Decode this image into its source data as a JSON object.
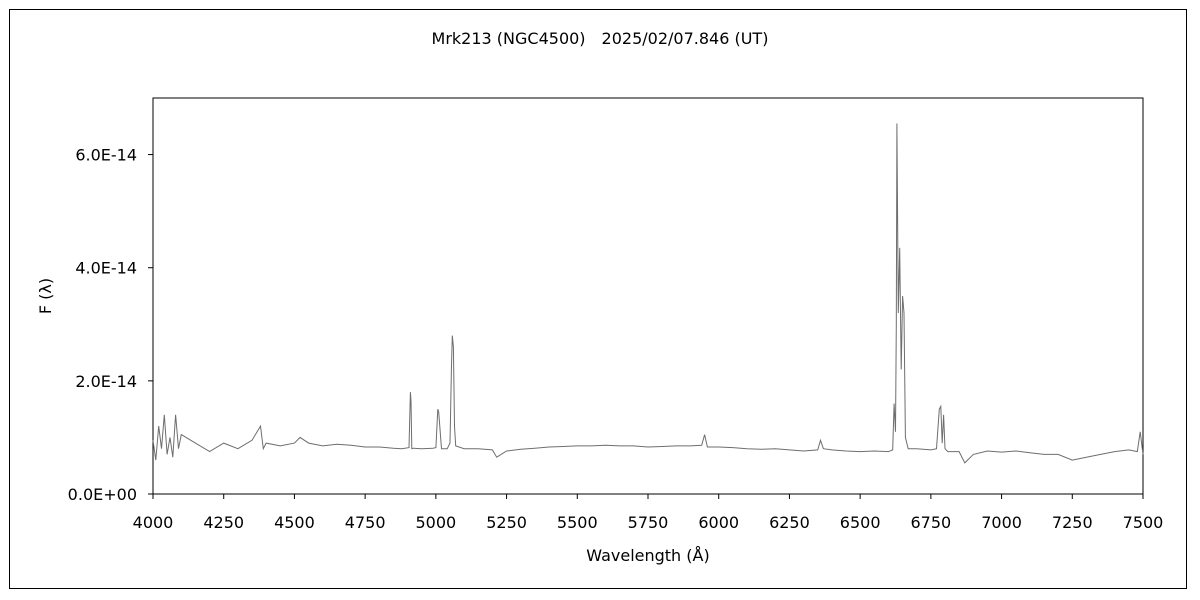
{
  "chart_data": {
    "type": "line",
    "title": "Mrk213 (NGC4500)　2025/02/07.846 (UT)",
    "xlabel": "Wavelength (Å)",
    "ylabel": "F (λ)",
    "xlim": [
      4000,
      7500
    ],
    "ylim": [
      0,
      7e-14
    ],
    "x_ticks": [
      "4000",
      "4250",
      "4500",
      "4750",
      "5000",
      "5250",
      "5500",
      "5750",
      "6000",
      "6250",
      "6500",
      "6750",
      "7000",
      "7250",
      "7500"
    ],
    "y_ticks": [
      "0.0E+00",
      "2.0E-14",
      "4.0E-14",
      "6.0E-14"
    ],
    "y_tick_values": [
      0,
      2e-14,
      4e-14,
      6e-14
    ],
    "grid": false,
    "legend": "none",
    "series_color": "#6e6e6e",
    "x": [
      4000,
      4010,
      4020,
      4030,
      4040,
      4050,
      4060,
      4070,
      4080,
      4090,
      4100,
      4150,
      4200,
      4250,
      4300,
      4350,
      4380,
      4390,
      4400,
      4450,
      4500,
      4520,
      4550,
      4600,
      4650,
      4700,
      4750,
      4800,
      4850,
      4880,
      4905,
      4910,
      4912,
      4915,
      4920,
      4950,
      4990,
      5000,
      5007,
      5010,
      5020,
      5040,
      5050,
      5055,
      5058,
      5062,
      5066,
      5070,
      5100,
      5150,
      5200,
      5215,
      5250,
      5300,
      5350,
      5400,
      5450,
      5500,
      5550,
      5600,
      5650,
      5700,
      5750,
      5800,
      5850,
      5900,
      5940,
      5950,
      5960,
      6000,
      6050,
      6100,
      6150,
      6200,
      6250,
      6300,
      6350,
      6360,
      6370,
      6400,
      6450,
      6500,
      6550,
      6600,
      6615,
      6620,
      6625,
      6628,
      6630,
      6635,
      6640,
      6645,
      6650,
      6655,
      6660,
      6670,
      6700,
      6750,
      6770,
      6780,
      6785,
      6790,
      6795,
      6800,
      6810,
      6850,
      6870,
      6900,
      6950,
      7000,
      7050,
      7100,
      7150,
      7200,
      7250,
      7300,
      7350,
      7400,
      7450,
      7480,
      7490,
      7500
    ],
    "y": [
      9.5e-15,
      6e-15,
      1.2e-14,
      8e-15,
      1.4e-14,
      7e-15,
      1e-14,
      6.5e-15,
      1.4e-14,
      8e-15,
      1.05e-14,
      9e-15,
      7.5e-15,
      9e-15,
      8e-15,
      9.5e-15,
      1.2e-14,
      8e-15,
      9e-15,
      8.5e-15,
      9e-15,
      1e-14,
      9e-15,
      8.5e-15,
      8.8e-15,
      8.6e-15,
      8.3e-15,
      8.3e-15,
      8.1e-15,
      8e-15,
      8.2e-15,
      1.8e-14,
      1.65e-14,
      8e-15,
      8.1e-15,
      8e-15,
      8.1e-15,
      8.2e-15,
      1.5e-14,
      1.45e-14,
      8e-15,
      8e-15,
      9e-15,
      2.2e-14,
      2.8e-14,
      2.6e-14,
      1.2e-14,
      8.5e-15,
      8e-15,
      8e-15,
      7.8e-15,
      6.5e-15,
      7.6e-15,
      7.9e-15,
      8.1e-15,
      8.3e-15,
      8.4e-15,
      8.5e-15,
      8.5e-15,
      8.6e-15,
      8.5e-15,
      8.5e-15,
      8.3e-15,
      8.4e-15,
      8.5e-15,
      8.5e-15,
      8.6e-15,
      1.05e-14,
      8.3e-15,
      8.3e-15,
      8.2e-15,
      8e-15,
      7.9e-15,
      8e-15,
      7.8e-15,
      7.6e-15,
      7.8e-15,
      9.5e-15,
      8e-15,
      7.8e-15,
      7.6e-15,
      7.5e-15,
      7.6e-15,
      7.5e-15,
      7.8e-15,
      1.6e-14,
      1.1e-14,
      3e-14,
      6.55e-14,
      3.2e-14,
      4.35e-14,
      2.2e-14,
      3.5e-14,
      3.2e-14,
      1e-14,
      8e-15,
      8e-15,
      7.8e-15,
      8e-15,
      1.5e-14,
      1.55e-14,
      9e-15,
      1.4e-14,
      8e-15,
      7.5e-15,
      7.5e-15,
      5.5e-15,
      7e-15,
      7.6e-15,
      7.4e-15,
      7.6e-15,
      7.3e-15,
      7e-15,
      7e-15,
      6e-15,
      6.5e-15,
      7e-15,
      7.5e-15,
      7.8e-15,
      7.5e-15,
      1.1e-14,
      7e-15
    ]
  }
}
